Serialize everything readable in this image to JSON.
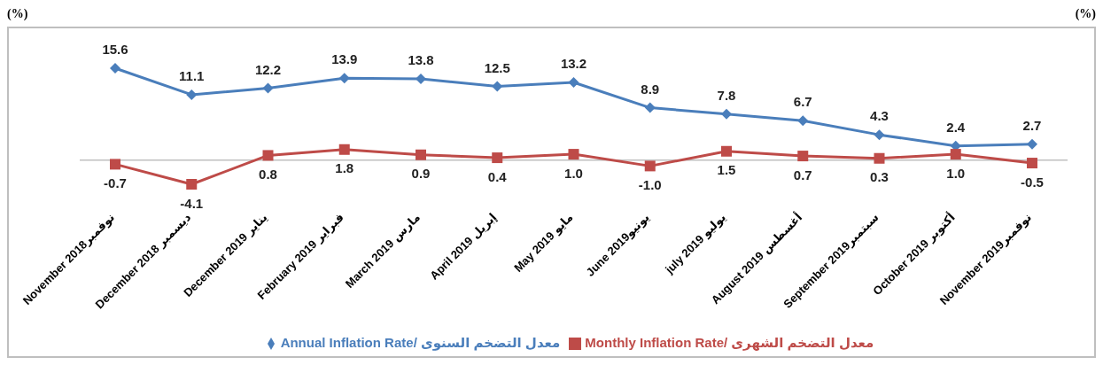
{
  "chart_data": {
    "type": "line",
    "ylabel": "(%)",
    "y2label": "(%)",
    "categories": [
      "November 2018نوفمبر",
      "December 2018 ديسمبر",
      "December 2019 يناير",
      "February  2019 فبراير",
      "March 2019 مارس",
      "April 2019 إبريل",
      "May 2019 مايو",
      "June 2019يونيو",
      "july 2019 يوليو",
      "August 2019 أغسطس",
      "September 2019سبتمبر",
      "October  2019 أكتوبر",
      "November 2019نوفمبر"
    ],
    "series": [
      {
        "name": "Annual Inflation Rate/ معدل التضخم السنوى",
        "color": "#4a7ebb",
        "marker": "diamond",
        "values": [
          15.6,
          11.1,
          12.2,
          13.9,
          13.8,
          12.5,
          13.2,
          8.9,
          7.8,
          6.7,
          4.3,
          2.4,
          2.7
        ],
        "value_labels": [
          "15.6",
          "11.1",
          "12.2",
          "13.9",
          "13.8",
          "12.5",
          "13.2",
          "8.9",
          "7.8",
          "6.7",
          "4.3",
          "2.4",
          "2.7"
        ]
      },
      {
        "name": "Monthly Inflation Rate/ معدل التضخم الشهرى",
        "color": "#be4b48",
        "marker": "square",
        "values": [
          -0.7,
          -4.1,
          0.8,
          1.8,
          0.9,
          0.4,
          1,
          -1,
          1.5,
          0.7,
          0.3,
          1,
          -0.5
        ],
        "value_labels": [
          "-0.7",
          "-4.1",
          "0.8",
          "1.8",
          "0.9",
          "0.4",
          "1.0",
          "-1.0",
          "1.5",
          "0.7",
          "0.3",
          "1.0",
          "-0.5"
        ]
      }
    ],
    "tick_labels": "x",
    "legend": "bottom"
  }
}
